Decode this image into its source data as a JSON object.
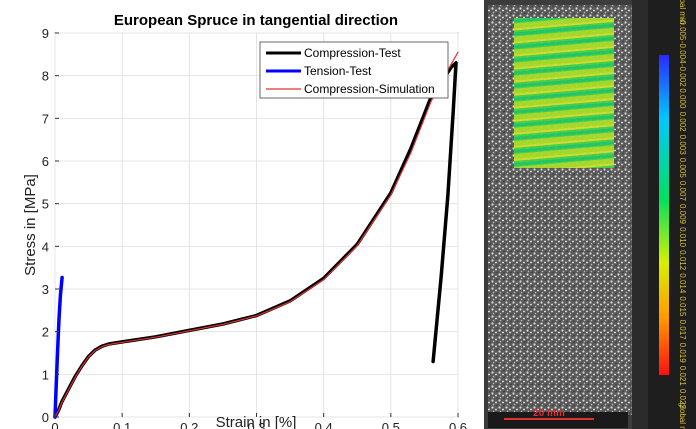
{
  "chart_data": {
    "type": "line",
    "title": "European Spruce in tangential direction",
    "xlabel": "Strain in [%]",
    "ylabel": "Stress in [MPa]",
    "xlim": [
      0,
      0.6
    ],
    "ylim": [
      0,
      9
    ],
    "xticks": [
      "0",
      "0.1",
      "0.2",
      "0.3",
      "0.4",
      "0.5",
      "0.6"
    ],
    "yticks": [
      "0",
      "1",
      "2",
      "3",
      "4",
      "5",
      "6",
      "7",
      "8",
      "9"
    ],
    "grid": true,
    "legend_position": "top-right",
    "series": [
      {
        "name": "Compression-Test",
        "color": "#000000",
        "points": [
          [
            0,
            0
          ],
          [
            0.005,
            0.15
          ],
          [
            0.01,
            0.35
          ],
          [
            0.02,
            0.65
          ],
          [
            0.03,
            0.95
          ],
          [
            0.04,
            1.2
          ],
          [
            0.05,
            1.42
          ],
          [
            0.06,
            1.57
          ],
          [
            0.07,
            1.66
          ],
          [
            0.08,
            1.71
          ],
          [
            0.1,
            1.76
          ],
          [
            0.15,
            1.88
          ],
          [
            0.2,
            2.03
          ],
          [
            0.25,
            2.18
          ],
          [
            0.3,
            2.38
          ],
          [
            0.35,
            2.72
          ],
          [
            0.4,
            3.25
          ],
          [
            0.45,
            4.05
          ],
          [
            0.5,
            5.25
          ],
          [
            0.53,
            6.3
          ],
          [
            0.56,
            7.5
          ],
          [
            0.59,
            8.2
          ],
          [
            0.597,
            8.3
          ],
          [
            0.593,
            7.2
          ],
          [
            0.585,
            5.2
          ],
          [
            0.575,
            3.3
          ],
          [
            0.563,
            1.3
          ]
        ]
      },
      {
        "name": "Tension-Test",
        "color": "#0000ff",
        "points": [
          [
            0,
            0
          ],
          [
            0.002,
            0.8
          ],
          [
            0.004,
            1.6
          ],
          [
            0.006,
            2.3
          ],
          [
            0.008,
            2.85
          ],
          [
            0.0105,
            3.27
          ]
        ]
      },
      {
        "name": "Compression-Simulation",
        "color": "#e03030",
        "points": [
          [
            0,
            0
          ],
          [
            0.005,
            0.14
          ],
          [
            0.01,
            0.33
          ],
          [
            0.02,
            0.63
          ],
          [
            0.03,
            0.93
          ],
          [
            0.04,
            1.19
          ],
          [
            0.05,
            1.41
          ],
          [
            0.06,
            1.56
          ],
          [
            0.07,
            1.65
          ],
          [
            0.08,
            1.7
          ],
          [
            0.1,
            1.75
          ],
          [
            0.15,
            1.87
          ],
          [
            0.2,
            2.02
          ],
          [
            0.25,
            2.17
          ],
          [
            0.3,
            2.37
          ],
          [
            0.35,
            2.7
          ],
          [
            0.4,
            3.22
          ],
          [
            0.45,
            4.02
          ],
          [
            0.5,
            5.2
          ],
          [
            0.53,
            6.2
          ],
          [
            0.56,
            7.4
          ],
          [
            0.58,
            8.0
          ],
          [
            0.6,
            8.55
          ]
        ]
      }
    ]
  },
  "dic_image": {
    "colorbar_labels": [
      "global min",
      "-0.005",
      "-0.004",
      "-0.002",
      "0.000",
      "0.002",
      "0.003",
      "0.005",
      "0.007",
      "0.009",
      "0.010",
      "0.012",
      "0.014",
      "0.015",
      "0.017",
      "0.019",
      "0.021",
      "0.022",
      "global max"
    ],
    "scale_bar_label": "20 mm"
  }
}
